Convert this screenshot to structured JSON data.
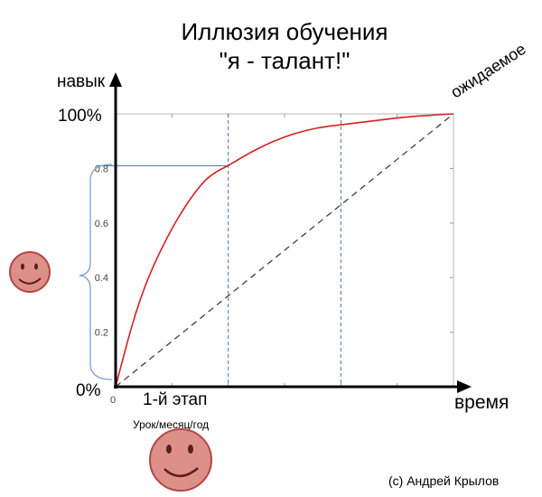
{
  "chart_data": {
    "type": "line",
    "title_line1": "Иллюзия обучения",
    "title_line2": "\"я - талант!\"",
    "ylabel": "навык",
    "xlabel": "время",
    "y_top_label": "100%",
    "y_bottom_label": "0%",
    "y_ticks": [
      "0",
      "0.2",
      "0.4",
      "0.6",
      "0.8"
    ],
    "x_tick_zero": "0",
    "stage_label": "1-й этап",
    "stage_sublabel": "Урок/месяц/год",
    "expected_label": "ожидаемое",
    "credit": "(c) Андрей Крылов",
    "xlim": [
      0,
      3
    ],
    "ylim": [
      0,
      1
    ],
    "grid_lines_x": [
      1,
      2
    ],
    "marked_point": {
      "x": 1,
      "y": 0.81
    },
    "series": [
      {
        "type": "curve",
        "color": "#d62020",
        "x": [
          0,
          0.1,
          0.2,
          0.3,
          0.4,
          0.5,
          0.6,
          0.7,
          0.8,
          0.9,
          1.0,
          1.2,
          1.4,
          1.6,
          1.8,
          2.0,
          2.2,
          2.4,
          2.6,
          2.8,
          3.0
        ],
        "y": [
          0,
          0.16,
          0.3,
          0.41,
          0.5,
          0.58,
          0.65,
          0.71,
          0.76,
          0.79,
          0.81,
          0.86,
          0.9,
          0.93,
          0.95,
          0.96,
          0.97,
          0.98,
          0.99,
          0.995,
          1.0
        ]
      },
      {
        "type": "dashed",
        "name": "ожидаемое",
        "color": "#333333",
        "x": [
          0,
          3.0
        ],
        "y": [
          0,
          1.0
        ]
      }
    ],
    "colors": {
      "curve": "#d62020",
      "guide": "#4a6fb0",
      "bracket": "#7f9fc8",
      "face": "#dd9088",
      "face_stroke": "#b24747"
    },
    "icons": [
      "smiley-face-left",
      "smiley-face-bottom"
    ]
  }
}
